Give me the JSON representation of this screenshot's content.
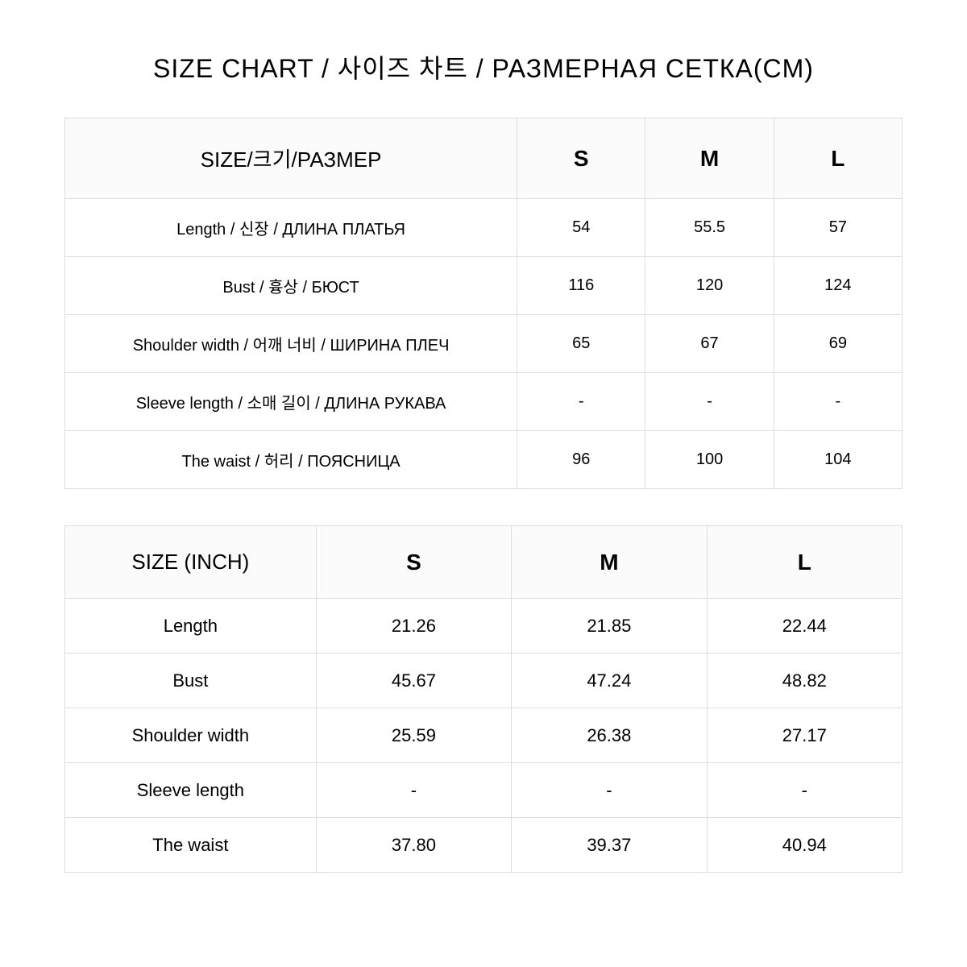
{
  "title": "SIZE CHART / 사이즈 차트 / РАЗМЕРНАЯ СЕТКА(CM)",
  "colors": {
    "border": "#dddddd",
    "header_bg": "#fbfbfb",
    "text": "#000000",
    "background": "#ffffff"
  },
  "cm_table": {
    "header_label": "SIZE/크기/РАЗМЕР",
    "sizes": [
      "S",
      "M",
      "L"
    ],
    "rows": [
      {
        "label": "Length  / 신장  /  ДЛИНА ПЛАТЬЯ",
        "values": [
          "54",
          "55.5",
          "57"
        ]
      },
      {
        "label": "Bust  / 흉상  /  БЮСТ",
        "values": [
          "116",
          "120",
          "124"
        ]
      },
      {
        "label": "Shoulder width  /  어깨 너비  /  ШИРИНА ПЛЕЧ",
        "values": [
          "65",
          "67",
          "69"
        ]
      },
      {
        "label": "Sleeve length / 소매 길이  /  ДЛИНА РУКАВА",
        "values": [
          "-",
          "-",
          "-"
        ]
      },
      {
        "label": "The waist  / 허리  /  ПОЯСНИЦА",
        "values": [
          "96",
          "100",
          "104"
        ]
      }
    ]
  },
  "inch_table": {
    "header_label": "SIZE (INCH)",
    "sizes": [
      "S",
      "M",
      "L"
    ],
    "rows": [
      {
        "label": "Length",
        "values": [
          "21.26",
          "21.85",
          "22.44"
        ]
      },
      {
        "label": "Bust",
        "values": [
          "45.67",
          "47.24",
          "48.82"
        ]
      },
      {
        "label": "Shoulder width",
        "values": [
          "25.59",
          "26.38",
          "27.17"
        ]
      },
      {
        "label": "Sleeve length",
        "values": [
          "-",
          "-",
          "-"
        ]
      },
      {
        "label": "The waist",
        "values": [
          "37.80",
          "39.37",
          "40.94"
        ]
      }
    ]
  }
}
